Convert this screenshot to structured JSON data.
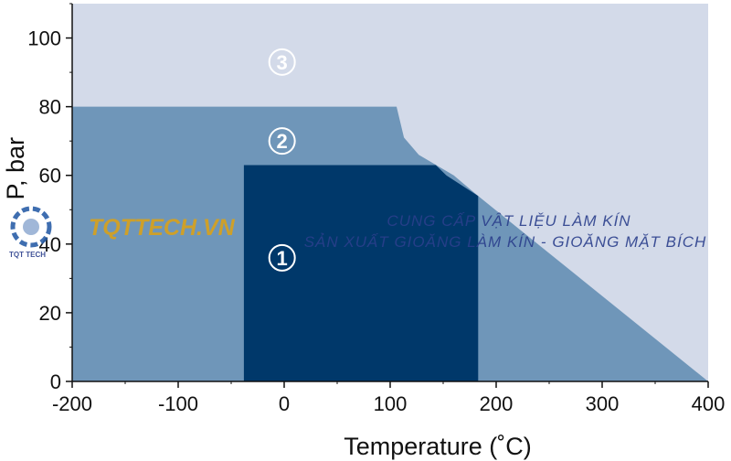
{
  "chart_data": {
    "type": "area",
    "xlabel": "Temperature (˚C)",
    "ylabel": "P, bar",
    "xlim": [
      -200,
      400
    ],
    "ylim": [
      0,
      110
    ],
    "x_ticks": [
      -200,
      -100,
      0,
      100,
      200,
      300,
      400
    ],
    "y_ticks": [
      0,
      20,
      40,
      60,
      80,
      100
    ],
    "grid": false,
    "colors": {
      "plot_bg": "#d3dae9",
      "region_2": "#6f96b9",
      "region_1": "#00386a"
    },
    "regions": [
      {
        "label": "3",
        "label_pos": [
          -2,
          93
        ],
        "points": [
          [
            -200,
            0
          ],
          [
            400,
            0
          ],
          [
            400,
            110
          ],
          [
            -200,
            110
          ]
        ]
      },
      {
        "label": "2",
        "label_pos": [
          -2,
          70
        ],
        "points": [
          [
            -200,
            0
          ],
          [
            -200,
            80
          ],
          [
            106,
            80
          ],
          [
            113,
            71
          ],
          [
            127,
            66
          ],
          [
            160,
            60
          ],
          [
            183,
            54
          ],
          [
            400,
            0
          ]
        ]
      },
      {
        "label": "1",
        "label_pos": [
          -2,
          36
        ],
        "points": [
          [
            -38,
            0
          ],
          [
            -38,
            63
          ],
          [
            143,
            63
          ],
          [
            153,
            60
          ],
          [
            168,
            57
          ],
          [
            183,
            54
          ],
          [
            183,
            0
          ]
        ]
      }
    ]
  },
  "watermark": {
    "brand": "TQTTECH.VN",
    "line1": "CUNG CẤP VẬT LIỆU LÀM KÍN",
    "line2": "SẢN XUẤT GIOĂNG LÀM KÍN - GIOĂNG MẶT BÍCH",
    "logo_text": "TQT TECH"
  }
}
